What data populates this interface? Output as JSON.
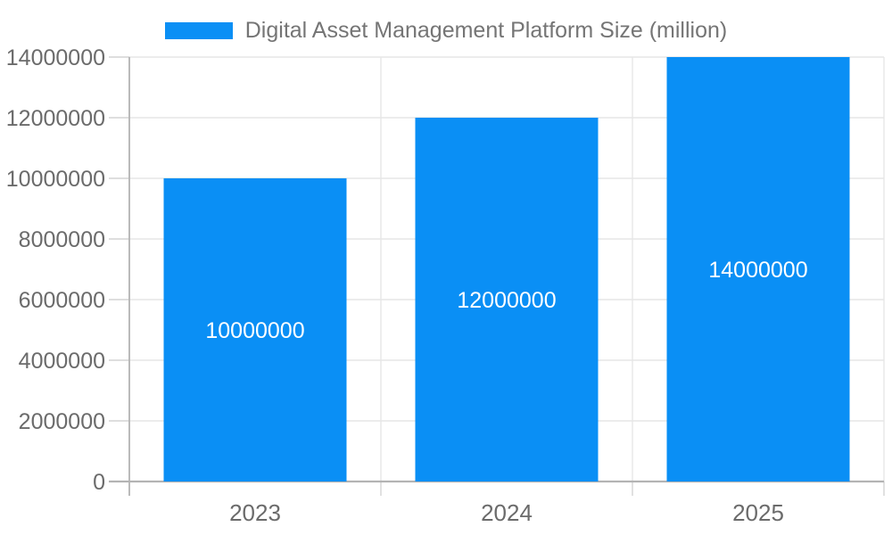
{
  "chart_data": {
    "type": "bar",
    "title": "Digital Asset Management Platform Size (million)",
    "categories": [
      "2023",
      "2024",
      "2025"
    ],
    "values": [
      10000000,
      12000000,
      14000000
    ],
    "data_labels": [
      "10000000",
      "12000000",
      "14000000"
    ],
    "series": [
      {
        "name": "Digital Asset Management Platform Size (million)",
        "values": [
          10000000,
          12000000,
          14000000
        ],
        "color": "#0a8ff5"
      }
    ],
    "xlabel": "",
    "ylabel": "",
    "ylim": [
      0,
      14000000
    ],
    "ytick_interval": 2000000,
    "ytick_labels": [
      "0",
      "2000000",
      "4000000",
      "6000000",
      "8000000",
      "10000000",
      "12000000",
      "14000000"
    ],
    "legend_position": "top",
    "grid": true
  },
  "colors": {
    "bar": "#0a8ff5",
    "bar_label_text": "#ffffff",
    "axis_text": "#6b6b6b",
    "legend_text": "#757575",
    "gridline": "#e6e6e6",
    "axis_line": "#b3b3b3",
    "tick": "#d4d4d4",
    "background": "#ffffff"
  }
}
